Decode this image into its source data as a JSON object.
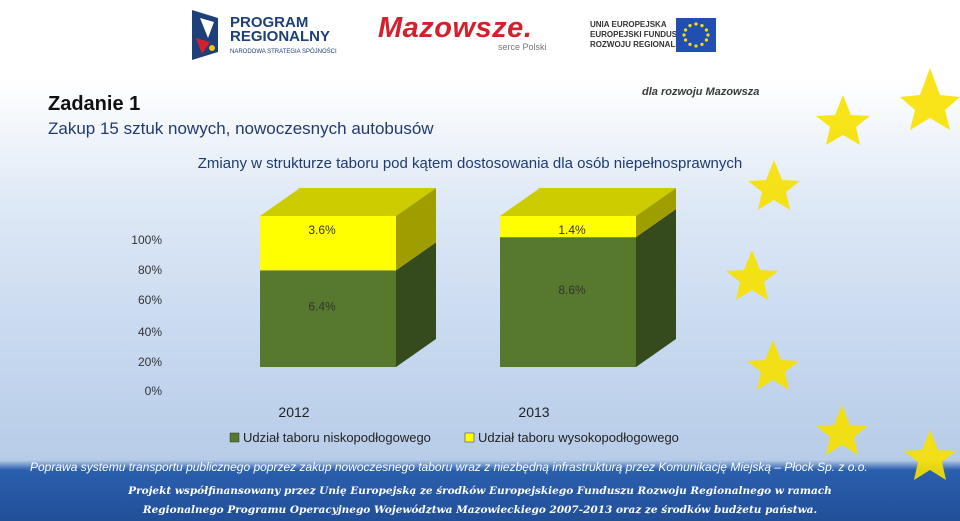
{
  "header": {
    "logo_program_line1": "PROGRAM",
    "logo_program_line2": "REGIONALNY",
    "logo_program_line3": "NARODOWA STRATEGIA SPÓJNOŚCI",
    "logo_mazowsze": "Mazowsze.",
    "logo_mazowsze_sub": "serce Polski",
    "logo_eu_line1": "UNIA EUROPEJSKA",
    "logo_eu_line2": "EUROPEJSKI FUNDUSZ",
    "logo_eu_line3": "ROZWOJU REGIONALNEGO"
  },
  "slogan": "dla rozwoju Mazowsza",
  "title": {
    "task": "Zadanie 1",
    "subtitle": "Zakup 15 sztuk nowych, nowoczesnych autobusów"
  },
  "chart_data": {
    "type": "bar",
    "stacked": true,
    "percent": true,
    "title": "Zmiany w strukturze taboru pod kątem dostosowania dla osób niepełnosprawnych",
    "categories": [
      "2012",
      "2013"
    ],
    "series": [
      {
        "name": "Udział taboru niskopodłogowego",
        "values": [
          6.4,
          8.6
        ],
        "color": "#56792e"
      },
      {
        "name": "Udział taboru wysokopodłogowego",
        "values": [
          3.6,
          1.4
        ],
        "color": "#ffff00"
      }
    ],
    "value_labels": [
      [
        "6.4%",
        "8.6%"
      ],
      [
        "3.6%",
        "1.4%"
      ]
    ],
    "yticks": [
      "0%",
      "20%",
      "40%",
      "60%",
      "80%",
      "100%"
    ],
    "ylim": [
      0,
      100
    ],
    "legend_position": "bottom",
    "three_d": true
  },
  "footer": {
    "line1": "Poprawa systemu transportu publicznego poprzez zakup nowoczesnego taboru wraz z niezbędną infrastrukturą przez Komunikację Miejską – Płock Sp. z o.o.",
    "line2": "Projekt współfinansowany przez Unię Europejską ze środków Europejskiego Funduszu Rozwoju Regionalnego w ramach",
    "line3": "Regionalnego Programu Operacyjnego Województwa Mazowieckiego 2007-2013 oraz ze środków budżetu państwa."
  }
}
